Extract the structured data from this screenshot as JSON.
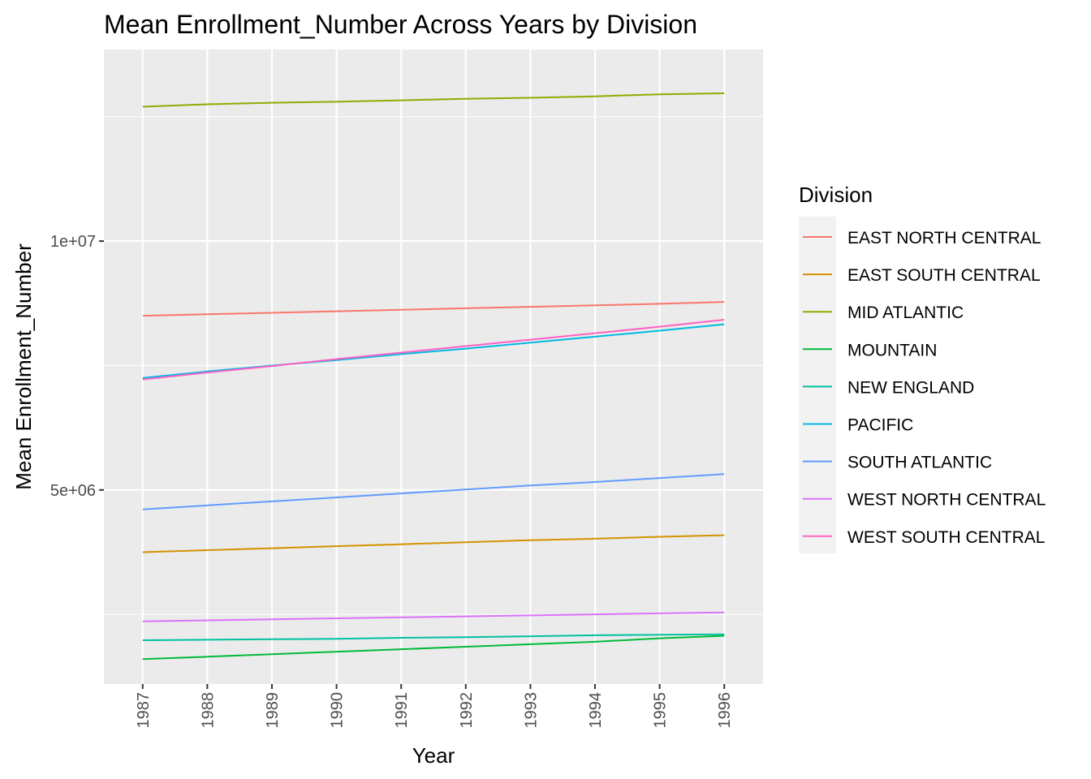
{
  "chart_data": {
    "type": "line",
    "title": "Mean Enrollment_Number Across Years by Division",
    "xlabel": "Year",
    "ylabel": "Mean Enrollment_Number",
    "x": [
      1987,
      1988,
      1989,
      1990,
      1991,
      1992,
      1993,
      1994,
      1995,
      1996
    ],
    "x_tick_labels": [
      "1987",
      "1988",
      "1989",
      "1990",
      "1991",
      "1992",
      "1993",
      "1994",
      "1995",
      "1996"
    ],
    "xlim": [
      1986.4,
      1996.6
    ],
    "ylim": [
      1100000,
      13850000
    ],
    "y_ticks": [
      {
        "value": 5000000,
        "label": "5e+06"
      },
      {
        "value": 10000000,
        "label": "1e+07"
      }
    ],
    "y_minor_ticks": [
      2500000,
      7500000,
      12500000
    ],
    "grid": true,
    "legend": {
      "title": "Division",
      "position": "right"
    },
    "series": [
      {
        "name": "EAST NORTH CENTRAL",
        "color": "#F8766D",
        "values": [
          8500000,
          8530000,
          8560000,
          8590000,
          8620000,
          8650000,
          8680000,
          8710000,
          8740000,
          8780000
        ]
      },
      {
        "name": "EAST SOUTH CENTRAL",
        "color": "#D39200",
        "values": [
          3750000,
          3790000,
          3830000,
          3870000,
          3910000,
          3950000,
          3990000,
          4020000,
          4060000,
          4090000
        ]
      },
      {
        "name": "MID ATLANTIC",
        "color": "#93AA00",
        "values": [
          12700000,
          12750000,
          12780000,
          12800000,
          12830000,
          12860000,
          12880000,
          12910000,
          12950000,
          12970000
        ]
      },
      {
        "name": "MOUNTAIN",
        "color": "#00BA38",
        "values": [
          1600000,
          1650000,
          1700000,
          1750000,
          1800000,
          1850000,
          1900000,
          1950000,
          2020000,
          2070000
        ]
      },
      {
        "name": "NEW ENGLAND",
        "color": "#00C19F",
        "values": [
          1980000,
          1990000,
          2000000,
          2010000,
          2030000,
          2040000,
          2060000,
          2080000,
          2090000,
          2100000
        ]
      },
      {
        "name": "PACIFIC",
        "color": "#00B9E3",
        "values": [
          7250000,
          7380000,
          7500000,
          7610000,
          7730000,
          7840000,
          7960000,
          8080000,
          8200000,
          8330000
        ]
      },
      {
        "name": "SOUTH ATLANTIC",
        "color": "#619CFF",
        "values": [
          4610000,
          4690000,
          4770000,
          4850000,
          4930000,
          5010000,
          5090000,
          5160000,
          5240000,
          5320000
        ]
      },
      {
        "name": "WEST NORTH CENTRAL",
        "color": "#DB72FB",
        "values": [
          2360000,
          2380000,
          2400000,
          2420000,
          2440000,
          2460000,
          2480000,
          2500000,
          2520000,
          2540000
        ]
      },
      {
        "name": "WEST SOUTH CENTRAL",
        "color": "#FF61C3",
        "values": [
          7220000,
          7360000,
          7490000,
          7630000,
          7760000,
          7890000,
          8020000,
          8150000,
          8280000,
          8420000
        ]
      }
    ]
  }
}
